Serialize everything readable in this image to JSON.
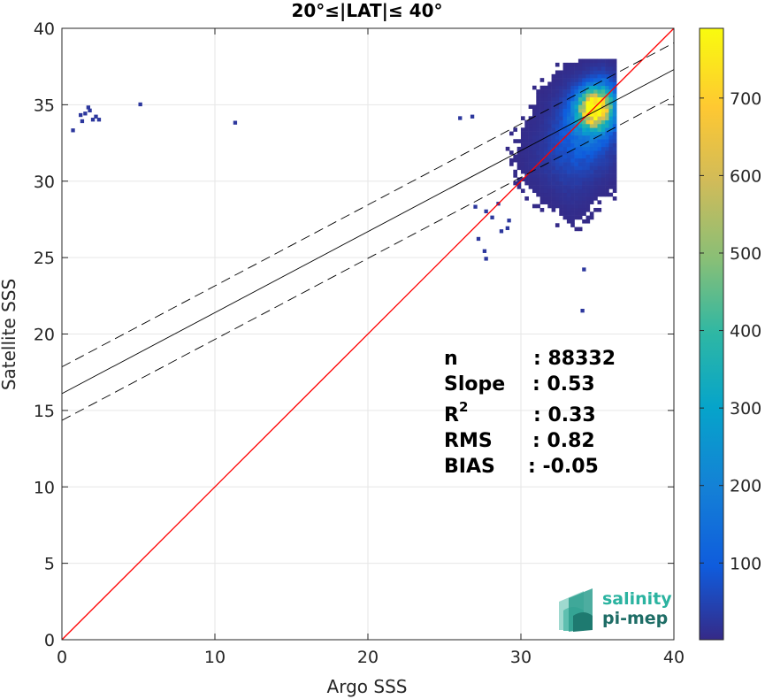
{
  "chart_data": {
    "type": "heatmap",
    "title": "20°≤|LAT|≤ 40°",
    "xlabel": "Argo SSS",
    "ylabel": "Satellite SSS",
    "xlim": [
      0,
      40
    ],
    "ylim": [
      0,
      40
    ],
    "x_ticks": [
      "0",
      "10",
      "20",
      "30",
      "40"
    ],
    "y_ticks": [
      "0",
      "5",
      "10",
      "15",
      "20",
      "25",
      "30",
      "35",
      "40"
    ],
    "grid": true,
    "colorbar": {
      "range": [
        1,
        790
      ],
      "ticks": [
        "100",
        "200",
        "300",
        "400",
        "500",
        "600",
        "700"
      ],
      "colormap": "parula"
    },
    "density_clusters": [
      {
        "x": 34.7,
        "y": 34.6,
        "sx": 0.75,
        "sy": 0.85,
        "peak": 790
      },
      {
        "x": 34.2,
        "y": 33.4,
        "sx": 1.2,
        "sy": 1.6,
        "peak": 140
      },
      {
        "x": 32.6,
        "y": 31.6,
        "sx": 1.3,
        "sy": 1.5,
        "peak": 35
      },
      {
        "x": 35.3,
        "y": 35.4,
        "sx": 0.6,
        "sy": 1.0,
        "peak": 120
      },
      {
        "x": 33.3,
        "y": 29.6,
        "sx": 0.7,
        "sy": 1.3,
        "peak": 10
      }
    ],
    "scatter_points": [
      [
        1.6,
        34.7
      ],
      [
        1.7,
        34.5
      ],
      [
        1.4,
        34.3
      ],
      [
        2.1,
        34.1
      ],
      [
        1.9,
        33.9
      ],
      [
        1.2,
        33.8
      ],
      [
        0.6,
        33.2
      ],
      [
        5.0,
        34.9
      ],
      [
        11.2,
        33.7
      ],
      [
        1.1,
        34.2
      ],
      [
        2.3,
        33.9
      ],
      [
        25.9,
        34.0
      ],
      [
        26.7,
        34.1
      ],
      [
        27.5,
        25.3
      ],
      [
        27.6,
        24.8
      ],
      [
        27.1,
        26.1
      ],
      [
        28.0,
        27.5
      ],
      [
        29.0,
        26.8
      ],
      [
        28.6,
        26.6
      ],
      [
        34.0,
        24.1
      ],
      [
        33.9,
        21.4
      ],
      [
        26.9,
        28.2
      ],
      [
        27.6,
        27.9
      ],
      [
        28.4,
        28.4
      ],
      [
        29.1,
        27.3
      ]
    ],
    "identity_line": {
      "x": [
        0,
        40
      ],
      "y": [
        0,
        40
      ],
      "color": "#ff0000"
    },
    "fit_line": {
      "slope": 0.53,
      "intercept": 16.1,
      "color": "#000000"
    },
    "fit_band": {
      "offset": 1.75,
      "color": "#000000",
      "style": "dashed"
    },
    "colors": {
      "identity": "#ff0000",
      "fit": "#000000",
      "grid": "#e6e6e6",
      "axis": "#262626"
    }
  },
  "stats": {
    "n_label": "n",
    "n_value": ": 88332",
    "slope_label": "Slope",
    "slope_value": ": 0.53",
    "r2_label": "R",
    "r2_sup": "2",
    "r2_value": ": 0.33",
    "rms_label": "RMS",
    "rms_value": ": 0.82",
    "bias_label": "BIAS",
    "bias_value": ": -0.05"
  },
  "logo": {
    "line1": "salinity",
    "line2": "pi-mep",
    "color1": "#2bb3a0",
    "color2": "#1e6d66"
  }
}
